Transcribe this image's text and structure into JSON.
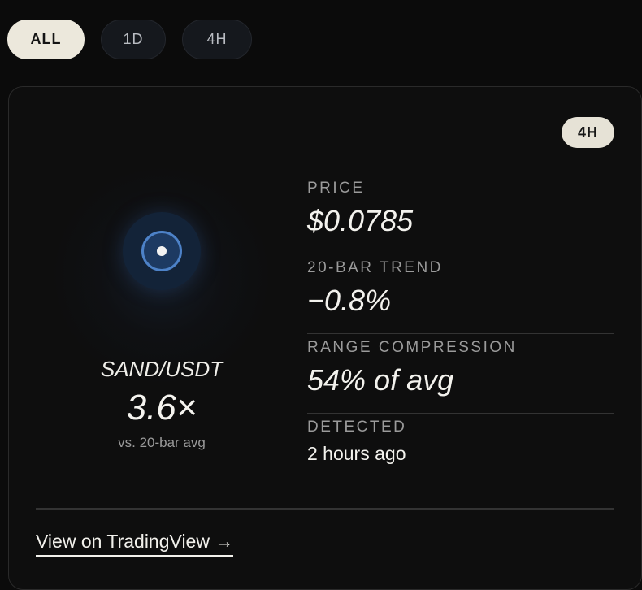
{
  "filters": {
    "items": [
      {
        "label": "ALL",
        "active": true
      },
      {
        "label": "1D",
        "active": false
      },
      {
        "label": "4H",
        "active": false
      }
    ]
  },
  "card": {
    "timeframe_badge": "4H",
    "signal_icon": "concentric-circle-target-icon",
    "pair": "SAND/USDT",
    "multiplier": "3.6×",
    "multiplier_caption": "vs. 20-bar avg",
    "stats": [
      {
        "label": "PRICE",
        "value": "$0.0785"
      },
      {
        "label": "20-BAR TREND",
        "value": "−0.8%"
      },
      {
        "label": "RANGE COMPRESSION",
        "value": "54% of avg"
      },
      {
        "label": "DETECTED",
        "value": "2 hours ago"
      }
    ],
    "link_label": "View on TradingView →"
  },
  "colors": {
    "background": "#0b0b0b",
    "card_background": "#0e0e0e",
    "active_pill": "#ece8dc",
    "ring_accent": "#4d82c8",
    "muted_text": "#9b9b9b"
  }
}
